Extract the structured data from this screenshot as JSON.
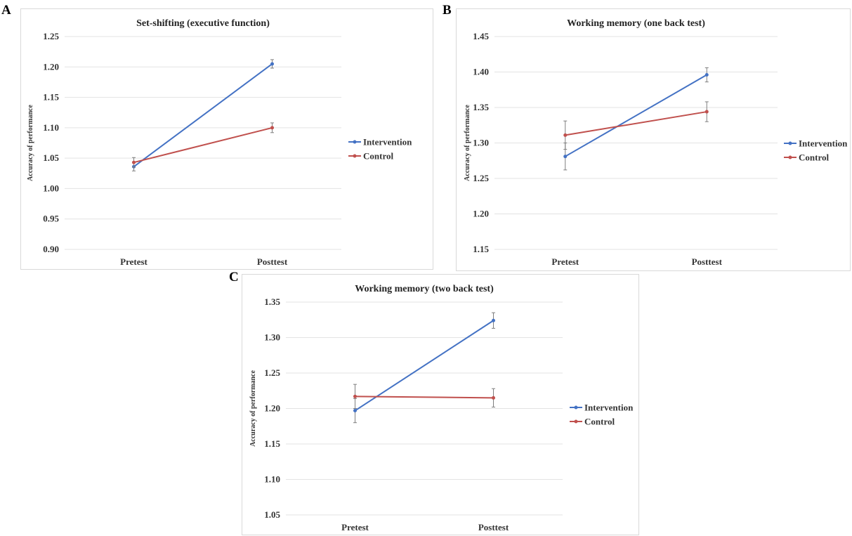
{
  "panel_letters": [
    "A",
    "B",
    "C"
  ],
  "chart_data": [
    {
      "type": "line",
      "title": "Set-shifting (executive function)",
      "ylabel": "Accuracy of performance",
      "xlabel": "",
      "categories": [
        "Pretest",
        "Posttest"
      ],
      "ylim": [
        0.9,
        1.25
      ],
      "yticks": [
        "0.90",
        "0.95",
        "1.00",
        "1.05",
        "1.10",
        "1.15",
        "1.20",
        "1.25"
      ],
      "grid": true,
      "legend": "right",
      "series": [
        {
          "name": "Intervention",
          "color": "#4472c4",
          "values": [
            1.036,
            1.205
          ],
          "errors": [
            0.007,
            0.007
          ]
        },
        {
          "name": "Control",
          "color": "#c0504d",
          "values": [
            1.043,
            1.1
          ],
          "errors": [
            0.008,
            0.008
          ]
        }
      ]
    },
    {
      "type": "line",
      "title": "Working memory (one back test)",
      "ylabel": "Accuracy of performance",
      "xlabel": "",
      "categories": [
        "Pretest",
        "Posttest"
      ],
      "ylim": [
        1.15,
        1.45
      ],
      "yticks": [
        "1.15",
        "1.20",
        "1.25",
        "1.30",
        "1.35",
        "1.40",
        "1.45"
      ],
      "grid": true,
      "legend": "right",
      "series": [
        {
          "name": "Intervention",
          "color": "#4472c4",
          "values": [
            1.281,
            1.396
          ],
          "errors": [
            0.019,
            0.01
          ]
        },
        {
          "name": "Control",
          "color": "#c0504d",
          "values": [
            1.311,
            1.344
          ],
          "errors": [
            0.02,
            0.014
          ]
        }
      ]
    },
    {
      "type": "line",
      "title": "Working memory (two back test)",
      "ylabel": "Accuracy of performance",
      "xlabel": "",
      "categories": [
        "Pretest",
        "Posttest"
      ],
      "ylim": [
        1.05,
        1.35
      ],
      "yticks": [
        "1.05",
        "1.10",
        "1.15",
        "1.20",
        "1.25",
        "1.30",
        "1.35"
      ],
      "grid": true,
      "legend": "right",
      "series": [
        {
          "name": "Intervention",
          "color": "#4472c4",
          "values": [
            1.197,
            1.324
          ],
          "errors": [
            0.017,
            0.011
          ]
        },
        {
          "name": "Control",
          "color": "#c0504d",
          "values": [
            1.217,
            1.215
          ],
          "errors": [
            0.017,
            0.013
          ]
        }
      ]
    }
  ]
}
